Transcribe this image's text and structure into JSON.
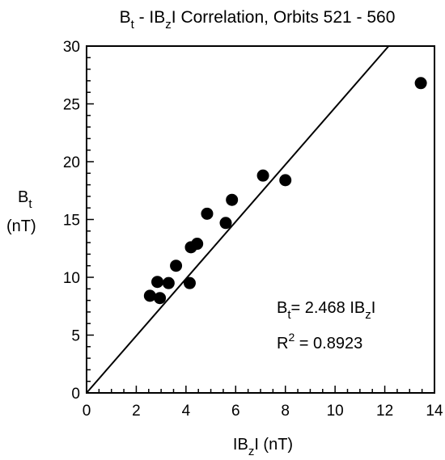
{
  "chart_data": {
    "type": "scatter",
    "title": {
      "base": "B",
      "base_sub": "t",
      "mid": " - IB",
      "mid_sub": "z",
      "rest": "I Correlation, Orbits 521 - 560"
    },
    "xlabel": {
      "pre": "IB",
      "sub": "z",
      "post": "I (nT)"
    },
    "ylabel": {
      "base": "B",
      "sub": "t",
      "unit": "(nT)"
    },
    "xlim": [
      0,
      14
    ],
    "ylim": [
      0,
      30
    ],
    "x_ticks": [
      0,
      2,
      4,
      6,
      8,
      10,
      12,
      14
    ],
    "y_ticks": [
      0,
      5,
      10,
      15,
      20,
      25,
      30
    ],
    "x_tick_labels": [
      "0",
      "2",
      "4",
      "6",
      "8",
      "10",
      "12",
      "14"
    ],
    "y_tick_labels": [
      "0",
      "5",
      "10",
      "15",
      "20",
      "25",
      "30"
    ],
    "grid": false,
    "points": [
      {
        "x": 2.55,
        "y": 8.4
      },
      {
        "x": 2.85,
        "y": 9.6
      },
      {
        "x": 2.95,
        "y": 8.2
      },
      {
        "x": 3.3,
        "y": 9.5
      },
      {
        "x": 3.6,
        "y": 11.0
      },
      {
        "x": 4.15,
        "y": 9.5
      },
      {
        "x": 4.2,
        "y": 12.6
      },
      {
        "x": 4.45,
        "y": 12.9
      },
      {
        "x": 4.85,
        "y": 15.5
      },
      {
        "x": 5.6,
        "y": 14.7
      },
      {
        "x": 5.85,
        "y": 16.7
      },
      {
        "x": 7.1,
        "y": 18.8
      },
      {
        "x": 8.0,
        "y": 18.4
      },
      {
        "x": 13.45,
        "y": 26.8
      }
    ],
    "fit": {
      "slope": 2.468,
      "intercept": 0
    },
    "annotations": {
      "eq_base": "B",
      "eq_sub": "t",
      "eq_mid": "=  2.468 IB",
      "eq_sub2": "z",
      "eq_end": "I",
      "r2_base": "R",
      "r2_sup": "2",
      "r2_rest": " = 0.8923"
    },
    "colors": {
      "points": "#000000",
      "line": "#000000",
      "axes": "#000000"
    }
  }
}
